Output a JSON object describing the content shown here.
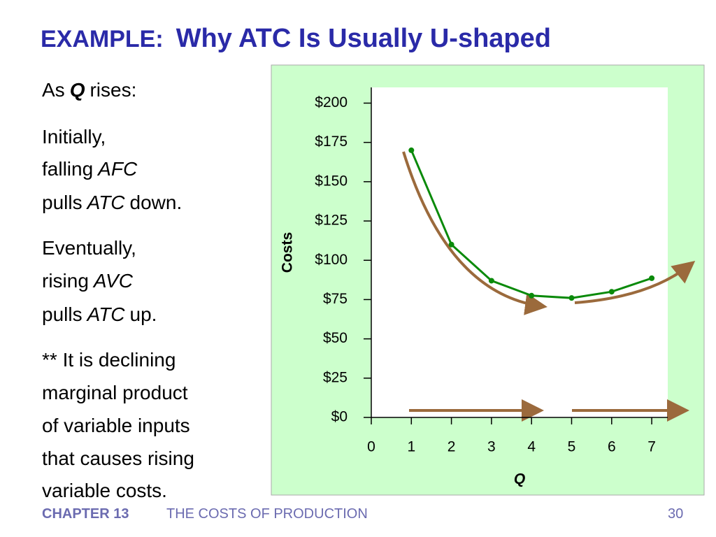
{
  "slide": {
    "title_prefix": "EXAMPLE:",
    "title": "Why ATC Is Usually U-shaped",
    "lines": [
      [
        "As",
        "Q",
        "rises:"
      ],
      [
        "Initially,"
      ],
      [
        "falling",
        "AFC"
      ],
      [
        "pulls",
        "ATC",
        "down."
      ],
      [
        "Eventually,"
      ],
      [
        "rising",
        "AVC"
      ],
      [
        "pulls",
        "ATC",
        "up."
      ],
      [
        "** It is declining"
      ],
      [
        "marginal product"
      ],
      [
        "of variable inputs"
      ],
      [
        "that causes rising"
      ],
      [
        "variable costs."
      ]
    ],
    "footer_chapter": "CHAPTER 13",
    "footer_title": "THE COSTS OF PRODUCTION",
    "page": "30"
  },
  "chart_data": {
    "type": "line",
    "x_label": "Q",
    "y_label": "Costs",
    "x": [
      1,
      2,
      3,
      4,
      5,
      6,
      7
    ],
    "series": [
      {
        "name": "ATC",
        "color": "#0a8a0a",
        "values": [
          170,
          110,
          87,
          77.5,
          76,
          80,
          88.6
        ]
      }
    ],
    "xlim": [
      0,
      7.4
    ],
    "ylim": [
      0,
      210
    ],
    "xticks": [
      0,
      1,
      2,
      3,
      4,
      5,
      6,
      7
    ],
    "yticks": [
      {
        "value": 0,
        "label": "$0"
      },
      {
        "value": 25,
        "label": "$25"
      },
      {
        "value": 50,
        "label": "$50"
      },
      {
        "value": 75,
        "label": "$75"
      },
      {
        "value": 100,
        "label": "$100"
      },
      {
        "value": 125,
        "label": "$125"
      },
      {
        "value": 150,
        "label": "$150"
      },
      {
        "value": 175,
        "label": "$175"
      },
      {
        "value": 200,
        "label": "$200"
      }
    ]
  }
}
